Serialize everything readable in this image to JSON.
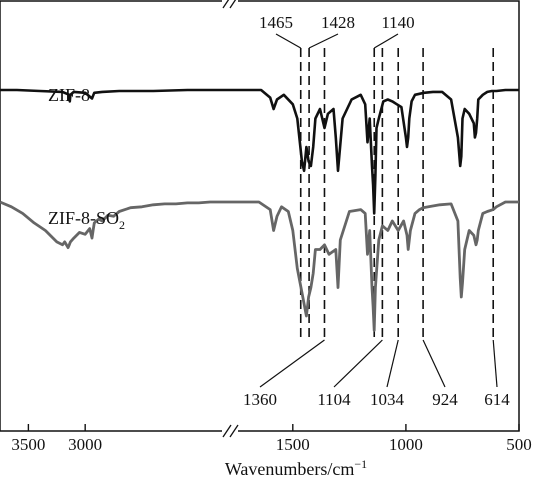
{
  "chart_data": {
    "type": "line",
    "title": "",
    "xlabel": "Wavenumbers/cm",
    "xlabel_superscript": "−1",
    "ylabel": "",
    "x_reversed": true,
    "axis_break": true,
    "xlim_left_segment": [
      3750,
      1760
    ],
    "xlim_right_segment": [
      1760,
      500
    ],
    "xticks": [
      3500,
      3000,
      1500,
      1000,
      500
    ],
    "grid": false,
    "series": [
      {
        "name": "ZIF-8",
        "color": "#111111",
        "x": [
          3750,
          3600,
          3400,
          3200,
          3140,
          3135,
          3130,
          3100,
          3000,
          2940,
          2930,
          2920,
          2850,
          2700,
          2400,
          2100,
          1900,
          1760,
          1700,
          1640,
          1600,
          1585,
          1570,
          1540,
          1500,
          1480,
          1460,
          1450,
          1440,
          1430,
          1420,
          1410,
          1400,
          1380,
          1360,
          1345,
          1320,
          1310,
          1300,
          1280,
          1240,
          1200,
          1180,
          1170,
          1160,
          1150,
          1145,
          1140,
          1135,
          1130,
          1120,
          1100,
          1080,
          1060,
          1040,
          1020,
          1000,
          995,
          990,
          985,
          975,
          960,
          920,
          880,
          840,
          800,
          770,
          760,
          755,
          750,
          740,
          720,
          700,
          695,
          690,
          685,
          680,
          660,
          640,
          620,
          600,
          560,
          500
        ],
        "y": [
          0.0,
          0.0,
          -0.01,
          -0.02,
          -0.05,
          -0.12,
          -0.05,
          -0.02,
          -0.03,
          -0.09,
          -0.06,
          -0.03,
          -0.02,
          -0.01,
          -0.01,
          0.0,
          0.0,
          0.0,
          0.0,
          0.0,
          -0.08,
          -0.2,
          -0.1,
          -0.05,
          -0.15,
          -0.3,
          -0.75,
          -0.85,
          -0.6,
          -0.75,
          -0.8,
          -0.6,
          -0.3,
          -0.2,
          -0.4,
          -0.25,
          -0.2,
          -0.5,
          -0.85,
          -0.3,
          -0.1,
          -0.05,
          -0.15,
          -0.55,
          -0.3,
          -0.8,
          -1.0,
          -1.3,
          -0.9,
          -0.4,
          -0.3,
          -0.12,
          -0.1,
          -0.12,
          -0.15,
          -0.18,
          -0.5,
          -0.6,
          -0.5,
          -0.3,
          -0.12,
          -0.05,
          -0.03,
          -0.02,
          -0.02,
          -0.1,
          -0.5,
          -0.8,
          -0.7,
          -0.3,
          -0.2,
          -0.25,
          -0.35,
          -0.5,
          -0.45,
          -0.3,
          -0.1,
          -0.05,
          -0.02,
          -0.01,
          -0.01,
          0.0,
          0.0
        ]
      },
      {
        "name": "ZIF-8-SO2",
        "name_display": "ZIF-8-SO",
        "name_subscript": "2",
        "color": "#666666",
        "x": [
          3750,
          3650,
          3550,
          3450,
          3350,
          3250,
          3200,
          3180,
          3150,
          3140,
          3130,
          3100,
          3050,
          3000,
          2960,
          2940,
          2930,
          2920,
          2880,
          2850,
          2800,
          2750,
          2700,
          2600,
          2500,
          2400,
          2300,
          2200,
          2100,
          2000,
          1900,
          1800,
          1760,
          1700,
          1650,
          1600,
          1585,
          1570,
          1550,
          1520,
          1500,
          1480,
          1460,
          1440,
          1430,
          1420,
          1410,
          1400,
          1380,
          1360,
          1340,
          1310,
          1300,
          1290,
          1250,
          1200,
          1180,
          1170,
          1160,
          1150,
          1145,
          1140,
          1135,
          1120,
          1104,
          1080,
          1060,
          1034,
          1010,
          995,
          990,
          980,
          960,
          940,
          924,
          900,
          850,
          800,
          770,
          760,
          755,
          750,
          740,
          720,
          700,
          690,
          685,
          680,
          660,
          640,
          614,
          600,
          560,
          500
        ],
        "y": [
          0.0,
          -0.05,
          -0.12,
          -0.22,
          -0.3,
          -0.42,
          -0.45,
          -0.42,
          -0.48,
          -0.45,
          -0.42,
          -0.38,
          -0.32,
          -0.34,
          -0.28,
          -0.38,
          -0.3,
          -0.22,
          -0.18,
          -0.2,
          -0.14,
          -0.15,
          -0.1,
          -0.06,
          -0.05,
          -0.03,
          -0.02,
          -0.02,
          -0.01,
          -0.01,
          0.0,
          0.0,
          0.0,
          0.0,
          0.0,
          -0.08,
          -0.3,
          -0.15,
          -0.05,
          -0.1,
          -0.3,
          -0.7,
          -0.95,
          -1.2,
          -1.0,
          -0.9,
          -0.75,
          -0.5,
          -0.5,
          -0.45,
          -0.55,
          -0.5,
          -0.9,
          -0.4,
          -0.1,
          -0.08,
          -0.12,
          -0.55,
          -0.3,
          -0.9,
          -1.1,
          -1.35,
          -0.9,
          -0.4,
          -0.25,
          -0.3,
          -0.2,
          -0.3,
          -0.2,
          -0.35,
          -0.5,
          -0.3,
          -0.12,
          -0.08,
          -0.06,
          -0.05,
          -0.03,
          -0.02,
          -0.2,
          -0.8,
          -1.0,
          -0.85,
          -0.5,
          -0.3,
          -0.35,
          -0.45,
          -0.4,
          -0.3,
          -0.12,
          -0.1,
          -0.08,
          -0.05,
          0.0,
          0.0
        ]
      }
    ],
    "peak_markers": [
      1465,
      1428,
      1360,
      1140,
      1104,
      1034,
      924,
      614
    ],
    "peak_labels_top": [
      {
        "wavenumber": 1465,
        "text": "1465"
      },
      {
        "wavenumber": 1428,
        "text": "1428"
      },
      {
        "wavenumber": 1140,
        "text": "1140"
      }
    ],
    "peak_labels_bottom": [
      {
        "wavenumber": 1360,
        "text": "1360"
      },
      {
        "wavenumber": 1104,
        "text": "1104"
      },
      {
        "wavenumber": 1034,
        "text": "1034"
      },
      {
        "wavenumber": 924,
        "text": "924"
      },
      {
        "wavenumber": 614,
        "text": "614"
      }
    ]
  }
}
